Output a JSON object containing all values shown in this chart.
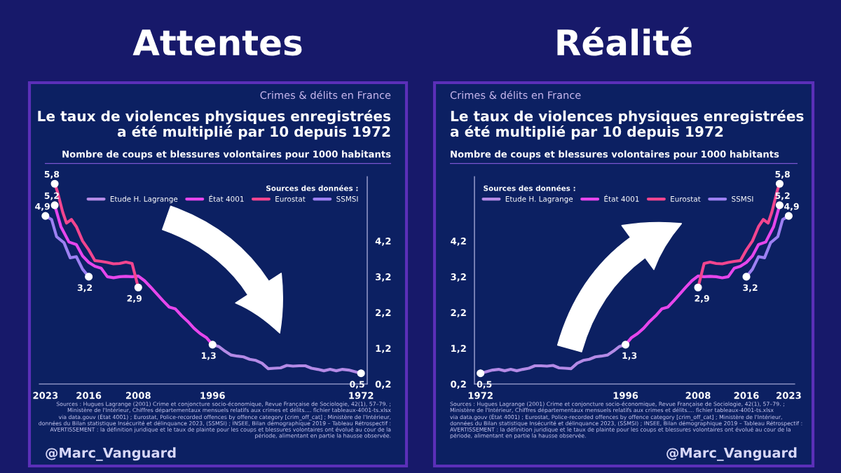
{
  "chart_data": [
    {
      "type": "line",
      "title": "Attentes",
      "subtitle": "Crimes & délits en France",
      "ylabel": "Nombre de coups et blessures volontaires pour 1000 habitants",
      "legend_title": "Sources des données :",
      "legend": "top right",
      "marker": "none",
      "line_style": "solid",
      "grid": false,
      "xlim": [
        2024,
        1971
      ],
      "xticks": [
        2023,
        2016,
        2008,
        1996,
        1972
      ],
      "ylim": [
        0.2,
        6.0
      ],
      "yticks": [
        {
          "value": 0.2,
          "label": "0,2"
        },
        {
          "value": 1.2,
          "label": "1,2"
        },
        {
          "value": 2.2,
          "label": "2,2"
        },
        {
          "value": 3.2,
          "label": "3,2"
        },
        {
          "value": 4.2,
          "label": "4,2"
        }
      ],
      "series": [
        {
          "name": "Etude H. Lagrange",
          "color": "#b48ae6",
          "x": [
            1972,
            1974,
            1975,
            1976,
            1977,
            1978,
            1979,
            1980,
            1981,
            1982,
            1983,
            1984,
            1985,
            1986,
            1987,
            1988,
            1989,
            1990,
            1991,
            1992,
            1993,
            1994,
            1995,
            1996
          ],
          "values": [
            0.5,
            0.59,
            0.61,
            0.57,
            0.61,
            0.57,
            0.61,
            0.64,
            0.71,
            0.71,
            0.7,
            0.72,
            0.65,
            0.64,
            0.63,
            0.78,
            0.86,
            0.89,
            0.96,
            0.98,
            1.01,
            1.12,
            1.25,
            1.3
          ]
        },
        {
          "name": "État 4001",
          "color": "#e646ec",
          "x": [
            1996,
            1997,
            1998,
            1999,
            2000,
            2001,
            2002,
            2003,
            2004,
            2005,
            2006,
            2007,
            2008,
            2009,
            2010,
            2011,
            2012,
            2013,
            2014,
            2015,
            2016,
            2017,
            2018,
            2019.2,
            2020.5,
            2021.5
          ],
          "values": [
            1.3,
            1.5,
            1.61,
            1.76,
            1.95,
            2.11,
            2.3,
            2.35,
            2.53,
            2.72,
            2.91,
            3.09,
            3.22,
            3.2,
            3.21,
            3.2,
            3.17,
            3.2,
            3.44,
            3.49,
            3.6,
            3.78,
            4.1,
            4.17,
            4.6,
            5.2
          ]
        },
        {
          "name": "Eurostat",
          "color": "#f2458f",
          "x": [
            2008,
            2009,
            2010,
            2011,
            2012,
            2013,
            2014,
            2015,
            2016,
            2017,
            2018,
            2018.8,
            2019.6,
            2020.2,
            2021.1,
            2021.5
          ],
          "values": [
            2.9,
            3.57,
            3.61,
            3.57,
            3.56,
            3.6,
            3.63,
            3.65,
            3.95,
            4.2,
            4.6,
            4.8,
            4.7,
            5.0,
            5.6,
            5.8
          ]
        },
        {
          "name": "SSMSI",
          "color": "#9d80f2",
          "x": [
            2016,
            2017,
            2018,
            2019,
            2020,
            2021.2,
            2022,
            2023
          ],
          "values": [
            3.2,
            3.41,
            3.76,
            3.73,
            4.15,
            4.32,
            4.8,
            4.9
          ]
        }
      ],
      "annotations": [
        "Le taux de violences physiques enregistrées\na été multiplié par 10 depuis 1972",
        "Sources : Hugues Lagrange (2001) Crime et conjoncture socio-économique, Revue Française de Sociologie, 42(1), 57–79. ;\nMinistère de l'Intérieur, Chiffres départementaux mensuels relatifs aux crimes et délits.... fichier tableaux-4001-ts.xlsx\nvia data.gouv (État 4001) ; Eurostat, Police-recorded offences by offence category [crim_off_cat] ; Ministère de l'Intérieur,\ndonnées du Bilan statistique Insécurité et délinquance 2023, (SSMSI) ; INSEE, Bilan démographique 2019 – Tableau Rétrospectif :\nAVERTISSEMENT : la définition juridique et le taux de plainte pour les coups et blessures volontaires ont évolué au cour de la\npériode, alimentant en partie la hausse observée.",
        "@Marc_Vanguard",
        {
          "text": "0,5",
          "x": 1972,
          "y": 0.5
        },
        {
          "text": "1,3",
          "x": 1996,
          "y": 1.3
        },
        {
          "text": "2,9",
          "x": 2008,
          "y": 2.9
        },
        {
          "text": "3,2",
          "x": 2016,
          "y": 3.2
        },
        {
          "text": "5,8",
          "x": 2021.5,
          "y": 5.8
        },
        {
          "text": "5,2",
          "x": 2021.5,
          "y": 5.2
        },
        {
          "text": "4,9",
          "x": 2023,
          "y": 4.9
        }
      ]
    },
    {
      "type": "line",
      "title": "Réalité",
      "subtitle": "Crimes & délits en France",
      "ylabel": "Nombre de coups et blessures volontaires pour 1000 habitants",
      "legend_title": "Sources des données :",
      "legend": "top left",
      "marker": "none",
      "line_style": "solid",
      "grid": false,
      "xlim": [
        1971,
        2024
      ],
      "xticks": [
        1972,
        1996,
        2008,
        2016,
        2023
      ],
      "ylim": [
        0.2,
        6.0
      ],
      "yticks": [
        {
          "value": 0.2,
          "label": "0,2"
        },
        {
          "value": 1.2,
          "label": "1,2"
        },
        {
          "value": 2.2,
          "label": "2,2"
        },
        {
          "value": 3.2,
          "label": "3,2"
        },
        {
          "value": 4.2,
          "label": "4,2"
        }
      ],
      "series": [
        {
          "name": "Etude H. Lagrange",
          "color": "#b48ae6",
          "x": [
            1972,
            1974,
            1975,
            1976,
            1977,
            1978,
            1979,
            1980,
            1981,
            1982,
            1983,
            1984,
            1985,
            1986,
            1987,
            1988,
            1989,
            1990,
            1991,
            1992,
            1993,
            1994,
            1995,
            1996
          ],
          "values": [
            0.5,
            0.59,
            0.61,
            0.57,
            0.61,
            0.57,
            0.61,
            0.64,
            0.71,
            0.71,
            0.7,
            0.72,
            0.65,
            0.64,
            0.63,
            0.78,
            0.86,
            0.89,
            0.96,
            0.98,
            1.01,
            1.12,
            1.25,
            1.3
          ]
        },
        {
          "name": "État 4001",
          "color": "#e646ec",
          "x": [
            1996,
            1997,
            1998,
            1999,
            2000,
            2001,
            2002,
            2003,
            2004,
            2005,
            2006,
            2007,
            2008,
            2009,
            2010,
            2011,
            2012,
            2013,
            2014,
            2015,
            2016,
            2017,
            2018,
            2019.2,
            2020.5,
            2021.5
          ],
          "values": [
            1.3,
            1.5,
            1.61,
            1.76,
            1.95,
            2.11,
            2.3,
            2.35,
            2.53,
            2.72,
            2.91,
            3.09,
            3.22,
            3.2,
            3.21,
            3.2,
            3.17,
            3.2,
            3.44,
            3.49,
            3.6,
            3.78,
            4.1,
            4.17,
            4.6,
            5.2
          ]
        },
        {
          "name": "Eurostat",
          "color": "#f2458f",
          "x": [
            2008,
            2009,
            2010,
            2011,
            2012,
            2013,
            2014,
            2015,
            2016,
            2017,
            2018,
            2018.8,
            2019.6,
            2020.2,
            2021.1,
            2021.5
          ],
          "values": [
            2.9,
            3.57,
            3.61,
            3.57,
            3.56,
            3.6,
            3.63,
            3.65,
            3.95,
            4.2,
            4.6,
            4.8,
            4.7,
            5.0,
            5.6,
            5.8
          ]
        },
        {
          "name": "SSMSI",
          "color": "#9d80f2",
          "x": [
            2016,
            2017,
            2018,
            2019,
            2020,
            2021.2,
            2022,
            2023
          ],
          "values": [
            3.2,
            3.41,
            3.76,
            3.73,
            4.15,
            4.32,
            4.8,
            4.9
          ]
        }
      ],
      "annotations": [
        "Le taux de violences physiques enregistrées\na été multiplié par 10 depuis 1972",
        "Sources : Hugues Lagrange (2001) Crime et conjoncture socio-économique, Revue Française de Sociologie, 42(1), 57–79. ;\nMinistère de l'Intérieur, Chiffres départementaux mensuels relatifs aux crimes et délits.... fichier tableaux-4001-ts.xlsx\nvia data.gouv (État 4001) ; Eurostat, Police-recorded offences by offence category [crim_off_cat] ; Ministère de l'Intérieur,\ndonnées du Bilan statistique Insécurité et délinquance 2023, (SSMSI) ; INSEE, Bilan démographique 2019 – Tableau Rétrospectif :\nAVERTISSEMENT : la définition juridique et le taux de plainte pour les coups et blessures volontaires ont évolué au cour de la\npériode, alimentant en partie la hausse observée.",
        "@Marc_Vanguard",
        {
          "text": "0,5",
          "x": 1972,
          "y": 0.5
        },
        {
          "text": "1,3",
          "x": 1996,
          "y": 1.3
        },
        {
          "text": "2,9",
          "x": 2008,
          "y": 2.9
        },
        {
          "text": "3,2",
          "x": 2016,
          "y": 3.2
        },
        {
          "text": "5,8",
          "x": 2021.5,
          "y": 5.8
        },
        {
          "text": "5,2",
          "x": 2021.5,
          "y": 5.2
        },
        {
          "text": "4,9",
          "x": 2023,
          "y": 4.9
        }
      ]
    }
  ]
}
